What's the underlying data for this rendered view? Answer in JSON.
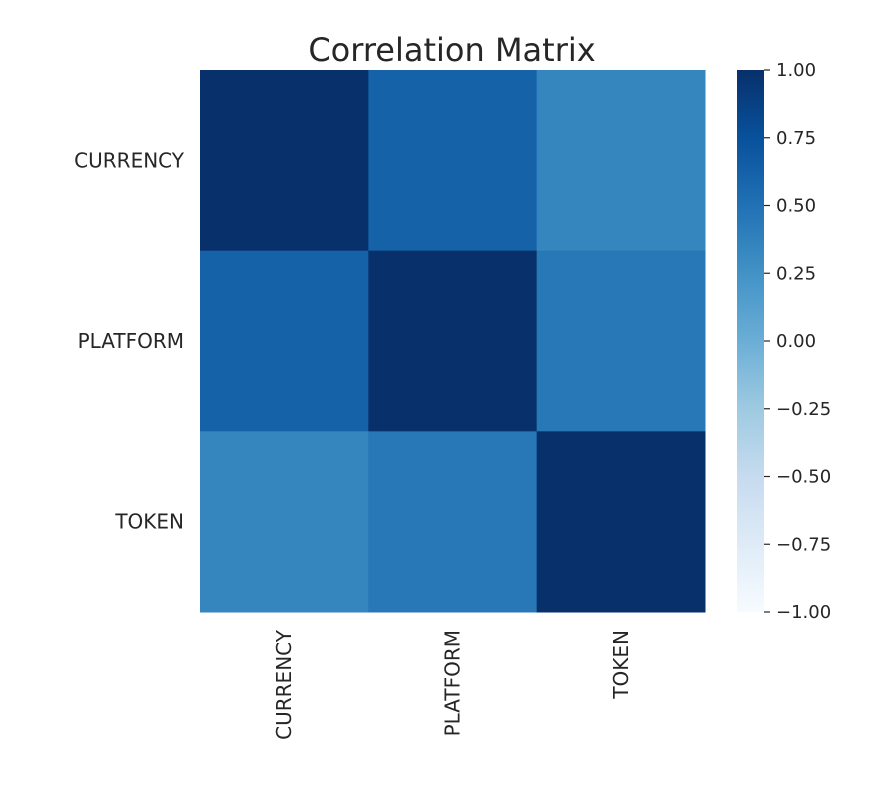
{
  "chart_data": {
    "type": "heatmap",
    "title": "Correlation  Matrix",
    "xlabel": "",
    "ylabel": "",
    "x_categories": [
      "CURRENCY",
      "PLATFORM",
      "TOKEN"
    ],
    "y_categories": [
      "CURRENCY",
      "PLATFORM",
      "TOKEN"
    ],
    "values": [
      [
        1.0,
        0.62,
        0.35
      ],
      [
        0.62,
        1.0,
        0.45
      ],
      [
        0.35,
        0.45,
        1.0
      ]
    ],
    "colorbar": {
      "min": -1.0,
      "max": 1.0,
      "ticks": [
        "1.00",
        "0.75",
        "0.50",
        "0.25",
        "0.00",
        "-0.25",
        "-0.50",
        "-0.75",
        "-1.00"
      ],
      "colormap": [
        "#f7fbff",
        "#deebf7",
        "#c6dbef",
        "#9ecae1",
        "#6baed6",
        "#4292c6",
        "#2171b5",
        "#08519c",
        "#08306b"
      ]
    },
    "grid": false
  }
}
